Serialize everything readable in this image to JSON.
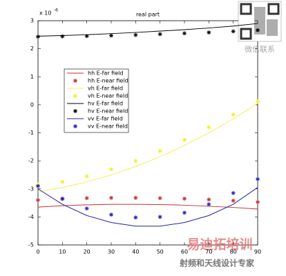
{
  "chart_data": {
    "type": "line",
    "title": "real part",
    "y_scale_label": "x 10",
    "y_scale_exponent": "-6",
    "x": [
      0,
      10,
      20,
      30,
      40,
      50,
      60,
      70,
      80,
      90
    ],
    "xlim": [
      0,
      90
    ],
    "xticks": [
      0,
      10,
      20,
      30,
      40,
      50,
      60,
      70,
      80,
      90
    ],
    "ylim": [
      -5,
      3
    ],
    "yticks": [
      -5,
      -4,
      -3,
      -2,
      -1,
      0,
      1,
      2,
      3
    ],
    "grid": false,
    "legend": "upper-left",
    "series": [
      {
        "name": "hh E-far field",
        "color": "#c03030",
        "style": "line",
        "values": [
          -3.65,
          -3.6,
          -3.57,
          -3.55,
          -3.55,
          -3.56,
          -3.58,
          -3.62,
          -3.66,
          -3.72
        ]
      },
      {
        "name": "hh E-near field",
        "color": "#c03030",
        "style": "markers",
        "values": [
          -3.4,
          -3.36,
          -3.33,
          -3.32,
          -3.32,
          -3.33,
          -3.35,
          -3.38,
          -3.42,
          -3.47
        ]
      },
      {
        "name": "vh E-far field",
        "color": "#f0f060",
        "style": "line",
        "values": [
          -3.1,
          -2.95,
          -2.75,
          -2.5,
          -2.2,
          -1.85,
          -1.45,
          -1.0,
          -0.5,
          0.05
        ]
      },
      {
        "name": "vh E-near field",
        "color": "#f0f020",
        "style": "markers",
        "values": [
          -2.85,
          -2.75,
          -2.55,
          -2.3,
          -2.0,
          -1.65,
          -1.25,
          -0.8,
          -0.35,
          0.12
        ]
      },
      {
        "name": "hv E-far field",
        "color": "#000000",
        "style": "line",
        "values": [
          2.45,
          2.47,
          2.5,
          2.54,
          2.58,
          2.63,
          2.68,
          2.74,
          2.81,
          2.9
        ]
      },
      {
        "name": "hv E-near field",
        "color": "#000000",
        "style": "markers",
        "values": [
          2.43,
          2.44,
          2.45,
          2.47,
          2.49,
          2.52,
          2.55,
          2.58,
          2.62,
          2.66
        ]
      },
      {
        "name": "vv E-far field",
        "color": "#2020a0",
        "style": "line",
        "values": [
          -3.0,
          -3.55,
          -3.95,
          -4.2,
          -4.33,
          -4.33,
          -4.2,
          -3.95,
          -3.55,
          -2.95
        ]
      },
      {
        "name": "vv E-near field",
        "color": "#2020c0",
        "style": "markers",
        "values": [
          -2.9,
          -3.35,
          -3.7,
          -3.92,
          -4.02,
          -4.0,
          -3.85,
          -3.55,
          -3.15,
          -2.65
        ]
      }
    ]
  },
  "watermark": {
    "qr_caption": "微信联系",
    "brand": "易迪拓培训",
    "slogan": "射频和天线设计专家"
  }
}
